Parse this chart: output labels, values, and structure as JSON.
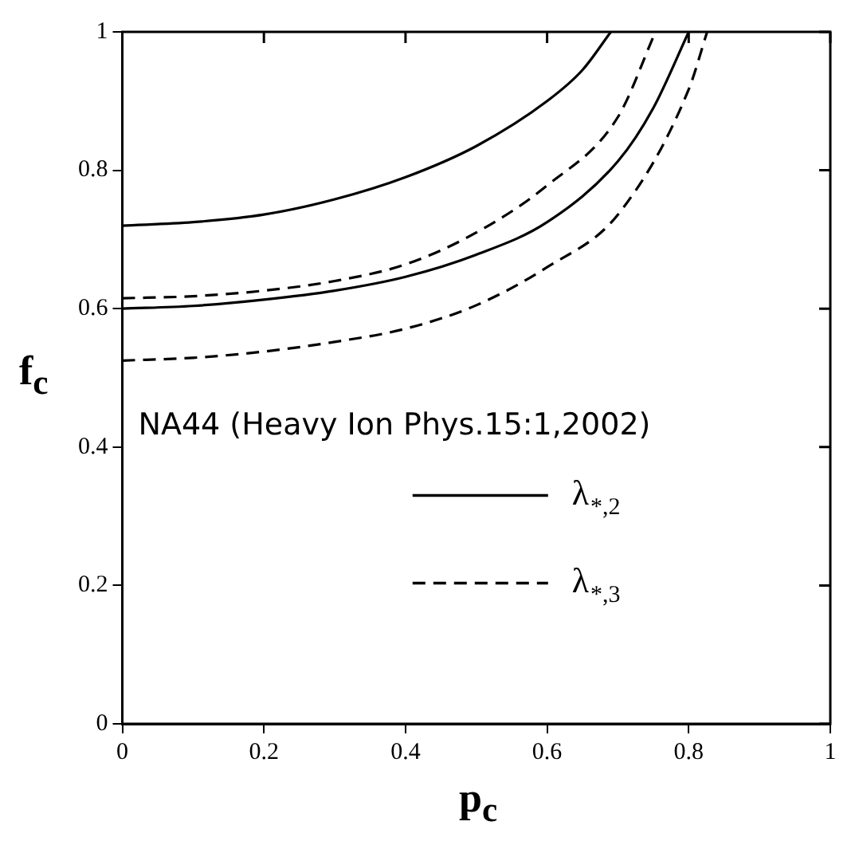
{
  "chart_data": {
    "type": "line",
    "xlabel": "p$_{c}$",
    "ylabel": "f$_{c}$",
    "xlim": [
      0,
      1
    ],
    "ylim": [
      0,
      1
    ],
    "xticks": [
      0,
      0.2,
      0.4,
      0.6,
      0.8,
      1
    ],
    "yticks": [
      0,
      0.2,
      0.4,
      0.6,
      0.8,
      1
    ],
    "legend": "bottom right",
    "marker": "none",
    "annotations": [
      "NA44 (Heavy Ion Phys.15:1,2002)"
    ],
    "series": [
      {
        "name": "λ$_{*,2}$",
        "color": "#000000",
        "line_style": "solid",
        "x": [
          0,
          0.1,
          0.2,
          0.3,
          0.4,
          0.5,
          0.6,
          0.65,
          0.69
        ],
        "values": [
          0.72,
          0.725,
          0.736,
          0.758,
          0.79,
          0.835,
          0.9,
          0.945,
          1.0
        ]
      },
      {
        "color": "#000000",
        "line_style": "solid",
        "x": [
          0,
          0.1,
          0.2,
          0.3,
          0.4,
          0.5,
          0.6,
          0.7,
          0.75,
          0.8
        ],
        "values": [
          0.6,
          0.604,
          0.613,
          0.626,
          0.646,
          0.678,
          0.725,
          0.813,
          0.89,
          1.0
        ]
      },
      {
        "name": "λ$_{*,3}$",
        "color": "#000000",
        "line_style": "dashed",
        "x": [
          0,
          0.1,
          0.2,
          0.3,
          0.4,
          0.5,
          0.6,
          0.7,
          0.753
        ],
        "values": [
          0.615,
          0.618,
          0.626,
          0.64,
          0.664,
          0.71,
          0.778,
          0.877,
          1.0
        ]
      },
      {
        "color": "#000000",
        "line_style": "dashed",
        "x": [
          0,
          0.1,
          0.2,
          0.3,
          0.4,
          0.5,
          0.6,
          0.7,
          0.8,
          0.826
        ],
        "values": [
          0.525,
          0.529,
          0.538,
          0.552,
          0.571,
          0.605,
          0.66,
          0.736,
          0.917,
          1.0
        ]
      }
    ]
  }
}
